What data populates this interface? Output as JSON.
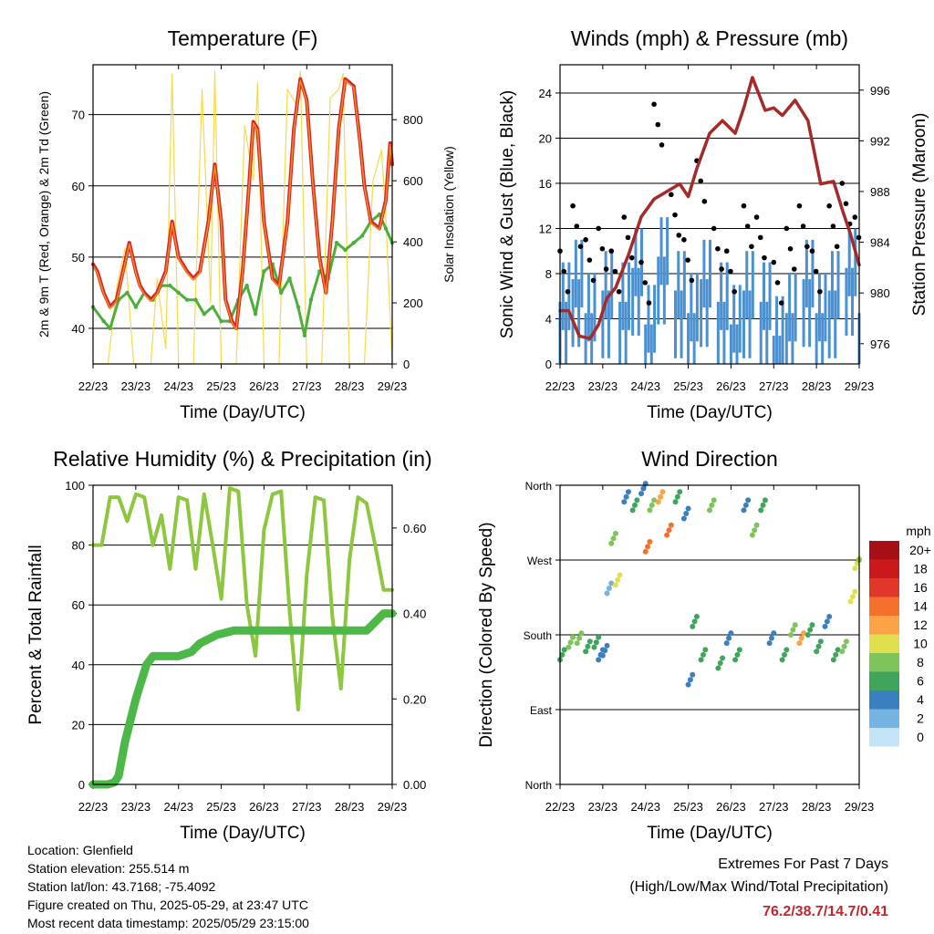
{
  "chart_data": [
    {
      "type": "line",
      "title": "Temperature (F)",
      "xlabel": "Time (Day/UTC)",
      "ylabel": "2m & 9m T (Red, Orange) & 2m Td (Green)",
      "ylabel_right": "Solar Insolation (Yellow)",
      "x_ticks": [
        "22/23",
        "23/23",
        "24/23",
        "25/23",
        "26/23",
        "27/23",
        "28/23",
        "29/23"
      ],
      "ylim": [
        35,
        77
      ],
      "y_ticks": [
        40,
        50,
        60,
        70
      ],
      "y2lim": [
        0,
        980
      ],
      "y2_ticks": [
        0,
        200,
        400,
        600,
        800
      ],
      "grid": "horizontal",
      "colors": {
        "temp_2m": "#d62728",
        "temp_9m": "#f58a1f",
        "dewpoint": "#4daf3a",
        "solar": "#f7d94c"
      },
      "series": [
        {
          "key": "temp",
          "axis": "left",
          "x": [
            0,
            0.1,
            0.25,
            0.4,
            0.55,
            0.7,
            0.85,
            1.0,
            1.1,
            1.2,
            1.35,
            1.5,
            1.7,
            1.85,
            2.0,
            2.1,
            2.2,
            2.35,
            2.5,
            2.7,
            2.85,
            3.0,
            3.1,
            3.25,
            3.35,
            3.5,
            3.65,
            3.75,
            3.85,
            4.0,
            4.2,
            4.35,
            4.55,
            4.7,
            4.85,
            5.0,
            5.15,
            5.3,
            5.45,
            5.6,
            5.75,
            5.9,
            6.1,
            6.25,
            6.35,
            6.5,
            6.7,
            6.85,
            6.95,
            7.0
          ],
          "y": [
            49,
            48,
            45,
            43,
            44,
            48,
            52,
            48,
            46,
            45,
            44,
            45,
            48,
            55,
            50,
            49,
            48,
            47,
            48,
            55,
            63,
            55,
            44,
            41,
            40,
            48,
            60,
            69,
            68,
            55,
            47,
            46,
            55,
            68,
            75,
            72,
            60,
            50,
            45,
            55,
            68,
            75,
            74,
            66,
            60,
            55,
            54,
            58,
            66,
            63
          ]
        },
        {
          "key": "dewpoint",
          "axis": "left",
          "x": [
            0,
            0.25,
            0.4,
            0.6,
            0.8,
            1.0,
            1.2,
            1.4,
            1.6,
            1.8,
            2.0,
            2.2,
            2.4,
            2.6,
            2.8,
            3.0,
            3.2,
            3.4,
            3.6,
            3.8,
            4.0,
            4.2,
            4.4,
            4.6,
            4.8,
            4.95,
            5.1,
            5.3,
            5.5,
            5.7,
            5.9,
            6.1,
            6.3,
            6.5,
            6.7,
            6.85,
            7.0
          ],
          "y": [
            43,
            41,
            40,
            44,
            45,
            43,
            45,
            44,
            46,
            46,
            45,
            44,
            44,
            42,
            43,
            41,
            41,
            44,
            46,
            42,
            48,
            49,
            45,
            47,
            43,
            39,
            44,
            48,
            47,
            52,
            51,
            52,
            53,
            55,
            56,
            54,
            52
          ]
        },
        {
          "key": "solar",
          "axis": "right",
          "x": [
            0,
            0.35,
            0.55,
            0.75,
            0.95,
            1.15,
            1.35,
            1.5,
            1.7,
            1.85,
            2.0,
            2.2,
            2.35,
            2.55,
            2.75,
            2.85,
            3.0,
            3.2,
            3.35,
            3.55,
            3.75,
            3.85,
            4.0,
            4.2,
            4.35,
            4.55,
            4.75,
            4.85,
            5.0,
            5.2,
            5.35,
            5.55,
            5.75,
            5.85,
            6.0,
            6.2,
            6.35,
            6.55,
            6.75,
            6.85,
            7.0
          ],
          "y": [
            0,
            0,
            250,
            380,
            0,
            0,
            0,
            280,
            50,
            950,
            0,
            0,
            0,
            900,
            200,
            960,
            0,
            0,
            0,
            780,
            600,
            920,
            0,
            0,
            0,
            900,
            850,
            960,
            0,
            0,
            0,
            870,
            900,
            950,
            0,
            0,
            0,
            600,
            700,
            480,
            0
          ]
        }
      ]
    },
    {
      "type": "scatter",
      "title": "Winds (mph) & Pressure (mb)",
      "xlabel": "Time (Day/UTC)",
      "ylabel": "Sonic Wind & Gust (Blue, Black)",
      "ylabel_right": "Station Pressure (Maroon)",
      "x_ticks": [
        "22/23",
        "23/23",
        "24/23",
        "25/23",
        "26/23",
        "27/23",
        "28/23",
        "29/23"
      ],
      "ylim": [
        0,
        26.5
      ],
      "y_ticks": [
        0,
        4,
        8,
        12,
        16,
        20,
        24
      ],
      "y2lim": [
        974.4,
        998
      ],
      "y2_ticks": [
        976,
        980,
        984,
        988,
        992,
        996
      ],
      "grid": "horizontal",
      "colors": {
        "wind": "#4b90d1",
        "gust": "#000000",
        "pressure": "#a52a2a"
      },
      "series": [
        {
          "key": "wind",
          "axis": "left",
          "x": [
            0,
            0.3,
            0.6,
            1.0,
            1.4,
            1.7,
            2.0,
            2.3,
            2.7,
            3.0,
            3.3,
            3.7,
            4.0,
            4.3,
            4.7,
            5.0,
            5.3,
            5.7,
            6.0,
            6.3,
            6.7,
            7.0
          ],
          "y": [
            7,
            9,
            6,
            8,
            7,
            10,
            5,
            11,
            8,
            6,
            9,
            7,
            5,
            8,
            7,
            4,
            6,
            9,
            6,
            8,
            10,
            6
          ]
        },
        {
          "key": "gust",
          "axis": "left",
          "x": [
            0,
            0.3,
            0.6,
            0.9,
            1.2,
            1.5,
            1.9,
            2.2,
            2.6,
            2.9,
            3.2,
            3.6,
            3.9,
            4.3,
            4.6,
            5.0,
            5.3,
            5.6,
            5.9,
            6.3,
            6.6,
            6.9
          ],
          "y": [
            10,
            14,
            11,
            12,
            10,
            13,
            9,
            23,
            15,
            11,
            18,
            12,
            10,
            14,
            13,
            9,
            12,
            14,
            10,
            14,
            16,
            13
          ]
        },
        {
          "key": "pressure",
          "axis": "right",
          "x": [
            0,
            0.2,
            0.45,
            0.7,
            0.9,
            1.1,
            1.3,
            1.6,
            1.9,
            2.2,
            2.5,
            2.8,
            3.0,
            3.2,
            3.5,
            3.8,
            4.1,
            4.3,
            4.5,
            4.8,
            5.0,
            5.2,
            5.5,
            5.8,
            6.1,
            6.4,
            6.6,
            6.8,
            7.0
          ],
          "y": [
            978.6,
            978.6,
            976.6,
            976.4,
            977.5,
            979.6,
            980.4,
            983.0,
            986.0,
            987.4,
            988.0,
            988.6,
            987.6,
            989.8,
            992.6,
            993.6,
            992.6,
            994.6,
            997.0,
            994.4,
            994.6,
            994.0,
            995.2,
            993.6,
            988.6,
            988.8,
            986.6,
            984.6,
            982.2
          ]
        }
      ]
    },
    {
      "type": "line",
      "title": "Relative Humidity (%) & Precipitation (in)",
      "xlabel": "Time (Day/UTC)",
      "ylabel": "Percent & Total Rainfall",
      "x_ticks": [
        "22/23",
        "23/23",
        "24/23",
        "25/23",
        "26/23",
        "27/23",
        "28/23",
        "29/23"
      ],
      "ylim": [
        0,
        100
      ],
      "y_ticks": [
        0,
        20,
        40,
        60,
        80,
        100
      ],
      "y2lim": [
        0,
        0.7
      ],
      "y2_ticks": [
        "0.00",
        "0.20",
        "0.40",
        "0.60"
      ],
      "grid": "horizontal",
      "colors": {
        "humidity": "#8dc63f",
        "precip": "#4cb848"
      },
      "series": [
        {
          "key": "humidity",
          "axis": "left",
          "x": [
            0,
            0.2,
            0.4,
            0.6,
            0.8,
            1.0,
            1.2,
            1.4,
            1.6,
            1.8,
            2.0,
            2.2,
            2.4,
            2.6,
            2.8,
            3.0,
            3.2,
            3.4,
            3.6,
            3.8,
            4.0,
            4.2,
            4.4,
            4.6,
            4.8,
            5.0,
            5.2,
            5.4,
            5.6,
            5.8,
            6.0,
            6.2,
            6.4,
            6.6,
            6.8,
            7.0
          ],
          "y": [
            80,
            80,
            96,
            96,
            88,
            97,
            96,
            80,
            90,
            72,
            96,
            95,
            72,
            97,
            80,
            62,
            99,
            98,
            60,
            43,
            85,
            97,
            98,
            58,
            25,
            70,
            96,
            95,
            56,
            32,
            75,
            96,
            94,
            80,
            65,
            65
          ]
        },
        {
          "key": "precip",
          "axis": "right",
          "x": [
            0,
            0.35,
            0.5,
            0.6,
            0.75,
            1.0,
            1.25,
            1.4,
            2.0,
            2.3,
            2.5,
            2.9,
            3.3,
            4.0,
            4.5,
            5.0,
            5.5,
            6.0,
            6.4,
            6.6,
            6.8,
            7.0
          ],
          "y": [
            0,
            0,
            0.005,
            0.02,
            0.1,
            0.2,
            0.28,
            0.3,
            0.3,
            0.31,
            0.33,
            0.35,
            0.36,
            0.36,
            0.36,
            0.36,
            0.36,
            0.36,
            0.36,
            0.38,
            0.4,
            0.4
          ]
        }
      ]
    },
    {
      "type": "scatter",
      "title": "Wind Direction",
      "xlabel": "Time (Day/UTC)",
      "ylabel": "Direction (Colored By Speed)",
      "x_ticks": [
        "22/23",
        "23/23",
        "24/23",
        "25/23",
        "26/23",
        "27/23",
        "28/23",
        "29/23"
      ],
      "y_ticks": [
        "North",
        "East",
        "South",
        "West",
        "North"
      ],
      "ylim": [
        0,
        360
      ],
      "grid": "horizontal",
      "legend": {
        "title": "mph",
        "labels": [
          "20+",
          "18",
          "16",
          "14",
          "12",
          "10",
          "8",
          "6",
          "4",
          "2",
          "0"
        ],
        "colors": [
          "#a50f15",
          "#cb181d",
          "#e3362b",
          "#f3712b",
          "#fba346",
          "#e2df4f",
          "#7ec45a",
          "#3fa45c",
          "#3a7fbf",
          "#74b3e2",
          "#c3e4f6"
        ]
      },
      "series": [
        {
          "key": "direction",
          "x": [
            0,
            0.2,
            0.4,
            0.6,
            0.8,
            0.9,
            1.0,
            1.1,
            1.2,
            1.3,
            1.5,
            1.7,
            1.9,
            2.0,
            2.1,
            2.3,
            2.5,
            2.7,
            2.9,
            3.0,
            3.1,
            3.3,
            3.5,
            3.7,
            3.9,
            4.1,
            4.3,
            4.5,
            4.7,
            4.9,
            5.2,
            5.4,
            5.6,
            5.8,
            6.0,
            6.2,
            6.4,
            6.6,
            6.8,
            6.9,
            7.0
          ],
          "y": [
            150,
            165,
            170,
            160,
            165,
            150,
            155,
            230,
            290,
            240,
            340,
            330,
            350,
            280,
            330,
            340,
            300,
            340,
            320,
            120,
            190,
            150,
            330,
            140,
            170,
            150,
            330,
            300,
            330,
            170,
            150,
            180,
            170,
            180,
            160,
            190,
            150,
            160,
            220,
            260,
            270
          ],
          "speed": [
            6,
            7,
            8,
            6,
            5,
            3,
            4,
            2,
            8,
            10,
            3,
            5,
            4,
            14,
            8,
            12,
            14,
            6,
            3,
            4,
            6,
            5,
            8,
            6,
            4,
            5,
            3,
            8,
            6,
            4,
            5,
            7,
            12,
            6,
            5,
            4,
            6,
            8,
            10,
            9,
            8
          ]
        }
      ]
    }
  ],
  "location": "Location: Glenfield",
  "elevation": "Station elevation: 255.514 m",
  "latlon": "Station lat/lon: 43.7168; -75.4092",
  "created": "Figure created on Thu, 2025-05-29, at 23:47 UTC",
  "recent": "Most recent data timestamp: 2025/05/29 23:15:00",
  "extremes_title": "Extremes For Past 7 Days",
  "extremes_sub": "(High/Low/Max Wind/Total Precipitation)",
  "extremes_values": "76.2/38.7/14.7/0.41"
}
